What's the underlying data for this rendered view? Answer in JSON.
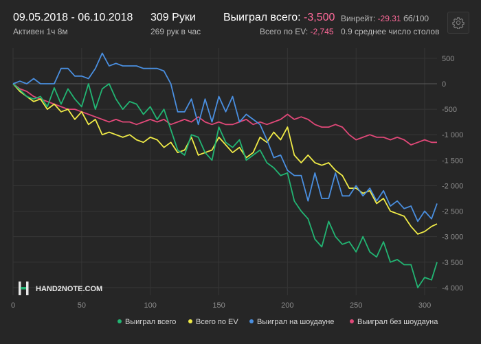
{
  "header": {
    "date_range": "09.05.2018 - 06.10.2018",
    "active": "Активен 1ч 8м",
    "hands": "309 Руки",
    "hands_per_hour": "269 рук в час",
    "won_total_label": "Выиграл всего:",
    "won_total_value": "-3,500",
    "ev_total_label": "Всего по EV:",
    "ev_total_value": "-2,745",
    "winrate_label": "Винрейт:",
    "winrate_value": "-29.31",
    "winrate_unit": "бб/100",
    "avg_tables": "0.9 среднее число столов"
  },
  "watermark": "HAND2NOTE.COM",
  "icons": {
    "settings": "gear-icon",
    "logo": "h2n-logo-icon"
  },
  "colors": {
    "background": "#262626",
    "won_total": "#22b573",
    "ev_total": "#f0eb47",
    "showdown": "#4a8fe0",
    "no_showdown": "#e04878",
    "negative": "#ff6a9a"
  },
  "chart_data": {
    "type": "line",
    "xlim": [
      0,
      309
    ],
    "ylim": [
      -4150,
      700
    ],
    "x_ticks": [
      0,
      50,
      100,
      150,
      200,
      250,
      300
    ],
    "x_tick_labels": [
      "0",
      "50",
      "100",
      "150",
      "200",
      "250",
      "300"
    ],
    "y_ticks": [
      500,
      0,
      -500,
      -1000,
      -1500,
      -2000,
      -2500,
      -3000,
      -3500,
      -4000
    ],
    "y_tick_labels": [
      "500",
      "0",
      "-500",
      "-1 000",
      "-1 500",
      "-2 000",
      "-2 500",
      "-3 000",
      "-3 500",
      "-4 000"
    ],
    "grid": true,
    "legend_position": "bottom-right",
    "series": [
      {
        "name": "Выиграл всего",
        "color": "#22b573",
        "x": [
          0,
          5,
          10,
          15,
          20,
          25,
          30,
          35,
          40,
          45,
          50,
          55,
          60,
          65,
          70,
          75,
          80,
          85,
          90,
          95,
          100,
          105,
          110,
          115,
          120,
          125,
          130,
          135,
          140,
          145,
          150,
          155,
          160,
          165,
          170,
          175,
          180,
          185,
          190,
          195,
          200,
          205,
          210,
          215,
          220,
          225,
          230,
          235,
          240,
          245,
          250,
          255,
          260,
          265,
          270,
          275,
          280,
          285,
          290,
          295,
          300,
          305,
          309
        ],
        "y": [
          0,
          -120,
          -250,
          -300,
          -250,
          -450,
          -80,
          -400,
          -100,
          -300,
          -450,
          0,
          -500,
          -100,
          0,
          -300,
          -500,
          -350,
          -400,
          -600,
          -450,
          -700,
          -500,
          -900,
          -1300,
          -1400,
          -1000,
          -1050,
          -1350,
          -1500,
          -850,
          -1150,
          -1250,
          -1100,
          -1500,
          -1400,
          -1300,
          -1550,
          -1650,
          -1800,
          -1750,
          -2300,
          -2500,
          -2650,
          -3050,
          -3200,
          -2700,
          -3000,
          -3150,
          -3100,
          -3300,
          -3000,
          -3300,
          -3400,
          -3100,
          -3500,
          -3450,
          -3550,
          -3550,
          -4000,
          -3800,
          -3850,
          -3500
        ]
      },
      {
        "name": "Всего по EV",
        "color": "#f0eb47",
        "x": [
          0,
          5,
          10,
          15,
          20,
          25,
          30,
          35,
          40,
          45,
          50,
          55,
          60,
          65,
          70,
          75,
          80,
          85,
          90,
          95,
          100,
          105,
          110,
          115,
          120,
          125,
          130,
          135,
          140,
          145,
          150,
          155,
          160,
          165,
          170,
          175,
          180,
          185,
          190,
          195,
          200,
          205,
          210,
          215,
          220,
          225,
          230,
          235,
          240,
          245,
          250,
          255,
          260,
          265,
          270,
          275,
          280,
          285,
          290,
          295,
          300,
          305,
          309
        ],
        "y": [
          0,
          -150,
          -250,
          -350,
          -300,
          -500,
          -400,
          -550,
          -500,
          -700,
          -550,
          -800,
          -700,
          -1000,
          -950,
          -1000,
          -1050,
          -1000,
          -1100,
          -1150,
          -1050,
          -1100,
          -1250,
          -1150,
          -1350,
          -1300,
          -1050,
          -1400,
          -1350,
          -1300,
          -1050,
          -1200,
          -1350,
          -1250,
          -1450,
          -1350,
          -1050,
          -1150,
          -950,
          -1100,
          -850,
          -1400,
          -1550,
          -1400,
          -1550,
          -1600,
          -1550,
          -1700,
          -1800,
          -2050,
          -2050,
          -2150,
          -2100,
          -2350,
          -2250,
          -2500,
          -2550,
          -2600,
          -2800,
          -2950,
          -2900,
          -2800,
          -2750
        ]
      },
      {
        "name": "Выиграл на шоудауне",
        "color": "#4a8fe0",
        "x": [
          0,
          5,
          10,
          15,
          20,
          25,
          30,
          35,
          40,
          45,
          50,
          55,
          60,
          65,
          70,
          75,
          80,
          85,
          90,
          95,
          100,
          105,
          110,
          115,
          120,
          125,
          130,
          135,
          140,
          145,
          150,
          155,
          160,
          165,
          170,
          175,
          180,
          185,
          190,
          195,
          200,
          205,
          210,
          215,
          220,
          225,
          230,
          235,
          240,
          245,
          250,
          255,
          260,
          265,
          270,
          275,
          280,
          285,
          290,
          295,
          300,
          305,
          309
        ],
        "y": [
          0,
          50,
          0,
          100,
          0,
          0,
          0,
          300,
          300,
          150,
          150,
          100,
          300,
          600,
          350,
          400,
          350,
          350,
          350,
          300,
          300,
          300,
          250,
          0,
          -550,
          -550,
          -300,
          -800,
          -300,
          -750,
          -250,
          -550,
          -250,
          -750,
          -600,
          -700,
          -800,
          -1100,
          -1450,
          -1400,
          -1700,
          -1800,
          -1800,
          -2300,
          -1750,
          -2250,
          -2250,
          -1750,
          -2200,
          -2200,
          -2000,
          -2200,
          -2050,
          -2300,
          -2100,
          -2400,
          -2300,
          -2450,
          -2400,
          -2700,
          -2500,
          -2650,
          -2350
        ]
      },
      {
        "name": "Выиграл без шоудауна",
        "color": "#e04878",
        "x": [
          0,
          5,
          10,
          15,
          20,
          25,
          30,
          35,
          40,
          45,
          50,
          55,
          60,
          65,
          70,
          75,
          80,
          85,
          90,
          95,
          100,
          105,
          110,
          115,
          120,
          125,
          130,
          135,
          140,
          145,
          150,
          155,
          160,
          165,
          170,
          175,
          180,
          185,
          190,
          195,
          200,
          205,
          210,
          215,
          220,
          225,
          230,
          235,
          240,
          245,
          250,
          255,
          260,
          265,
          270,
          275,
          280,
          285,
          290,
          295,
          300,
          305,
          309
        ],
        "y": [
          0,
          -100,
          -150,
          -250,
          -300,
          -350,
          -400,
          -450,
          -500,
          -500,
          -550,
          -600,
          -650,
          -700,
          -750,
          -700,
          -750,
          -750,
          -800,
          -750,
          -700,
          -750,
          -700,
          -800,
          -750,
          -700,
          -750,
          -650,
          -750,
          -800,
          -750,
          -800,
          -800,
          -750,
          -700,
          -800,
          -750,
          -800,
          -750,
          -700,
          -600,
          -700,
          -650,
          -700,
          -800,
          -850,
          -850,
          -800,
          -850,
          -1000,
          -1100,
          -1050,
          -1000,
          -1050,
          -1050,
          -1100,
          -1050,
          -1100,
          -1200,
          -1150,
          -1100,
          -1150,
          -1150
        ]
      }
    ]
  }
}
